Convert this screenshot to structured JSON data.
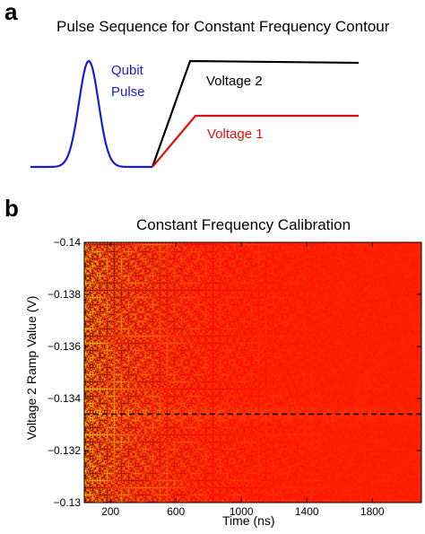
{
  "panel_a": {
    "label": "a",
    "title": "Pulse Sequence for Constant Frequency Contour",
    "qubit_label_line1": "Qubit",
    "qubit_label_line2": "Pulse",
    "voltage2_label": "Voltage 2",
    "voltage1_label": "Voltage 1",
    "colors": {
      "qubit": "#1a1adc",
      "voltage2": "#000000",
      "voltage1": "#e01010"
    }
  },
  "panel_b": {
    "label": "b"
  },
  "chart_data": {
    "type": "heatmap",
    "title": "Constant Frequency Calibration",
    "xlabel": "Time (ns)",
    "ylabel": "Voltage 2 Ramp Value (V)",
    "xlim": [
      40,
      2100
    ],
    "ylim": [
      -0.13,
      -0.14
    ],
    "xticks": [
      200,
      600,
      1000,
      1400,
      1800
    ],
    "xtick_labels": [
      "200",
      "600",
      "1000",
      "1400",
      "1800"
    ],
    "yticks": [
      -0.14,
      -0.138,
      -0.136,
      -0.134,
      -0.132,
      -0.13
    ],
    "ytick_labels": [
      "−0.14",
      "−0.138",
      "−0.136",
      "−0.134",
      "−0.132",
      "−0.13"
    ],
    "y_axis_reversed": true,
    "dashed_line_y": -0.1334,
    "colormap": "hot",
    "grid": false
  }
}
